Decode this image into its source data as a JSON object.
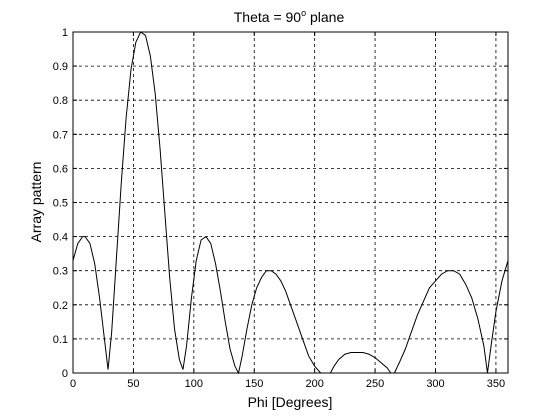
{
  "chart_data": {
    "type": "line",
    "title": "Theta = 90",
    "title_superscript": "o",
    "title_suffix": " plane",
    "xlabel": "Phi [Degrees]",
    "ylabel": "Array pattern",
    "xlim": [
      0,
      360
    ],
    "ylim": [
      0,
      1
    ],
    "xticks": [
      "0",
      "50",
      "100",
      "150",
      "200",
      "250",
      "300",
      "350"
    ],
    "yticks": [
      "0",
      "0.1",
      "0.2",
      "0.3",
      "0.4",
      "0.5",
      "0.6",
      "0.7",
      "0.8",
      "0.9",
      "1"
    ],
    "grid": true,
    "line_color": "#000000",
    "series": [
      {
        "x": [
          0,
          4,
          8,
          10,
          14,
          18,
          22,
          26,
          29,
          32,
          36,
          40,
          44,
          48,
          52,
          56,
          60,
          64,
          68,
          72,
          76,
          80,
          84,
          88,
          91,
          94,
          98,
          102,
          106,
          110,
          114,
          118,
          122,
          126,
          130,
          134,
          137,
          140,
          144,
          148,
          152,
          156,
          160,
          164,
          168,
          172,
          176,
          180,
          185,
          190,
          195,
          200,
          205,
          210,
          213,
          216,
          220,
          225,
          230,
          235,
          240,
          245,
          250,
          255,
          260,
          263,
          266,
          270,
          275,
          280,
          285,
          290,
          295,
          300,
          305,
          310,
          315,
          320,
          325,
          330,
          335,
          340,
          343,
          346,
          350,
          355,
          360
        ],
        "y": [
          0.33,
          0.38,
          0.4,
          0.4,
          0.38,
          0.32,
          0.22,
          0.1,
          0.01,
          0.12,
          0.34,
          0.56,
          0.75,
          0.89,
          0.97,
          1.0,
          0.99,
          0.93,
          0.82,
          0.66,
          0.47,
          0.28,
          0.13,
          0.04,
          0.01,
          0.08,
          0.22,
          0.33,
          0.39,
          0.4,
          0.38,
          0.32,
          0.24,
          0.15,
          0.07,
          0.02,
          0.0,
          0.05,
          0.13,
          0.2,
          0.25,
          0.28,
          0.3,
          0.3,
          0.29,
          0.27,
          0.24,
          0.2,
          0.15,
          0.1,
          0.05,
          0.02,
          0.0,
          0.0,
          0.0,
          0.02,
          0.04,
          0.055,
          0.06,
          0.06,
          0.06,
          0.055,
          0.045,
          0.03,
          0.015,
          0.0,
          0.0,
          0.03,
          0.07,
          0.12,
          0.17,
          0.21,
          0.25,
          0.27,
          0.29,
          0.3,
          0.3,
          0.29,
          0.26,
          0.22,
          0.16,
          0.08,
          0.0,
          0.08,
          0.18,
          0.27,
          0.33
        ]
      }
    ]
  }
}
